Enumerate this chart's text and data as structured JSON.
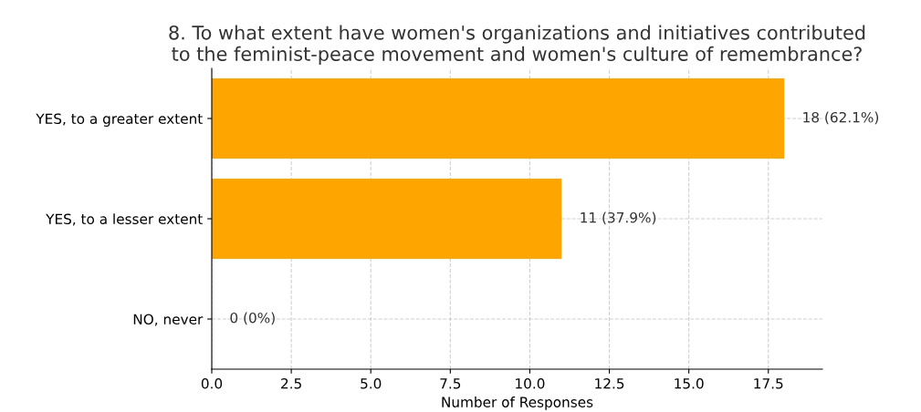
{
  "chart_data": {
    "type": "bar",
    "orientation": "horizontal",
    "title": "8. To what extent have women's organizations and initiatives contributed\nto the feminist-peace movement and women's culture of remembrance?",
    "xlabel": "Number of Responses",
    "categories": [
      "YES, to a greater extent",
      "YES, to a lesser extent",
      "NO, never"
    ],
    "values": [
      18,
      11,
      0
    ],
    "color": "#ffa500",
    "value_labels": [
      "18 (62.1%)",
      "11 (37.9%)",
      "0 (0%)"
    ],
    "xlim": [
      0,
      19.2
    ],
    "xticks": [
      {
        "value": 0,
        "label": "0.0"
      },
      2.5,
      {
        "value": 5,
        "label": "5.0"
      },
      7.5,
      {
        "value": 10,
        "label": "10.0"
      },
      12.5,
      {
        "value": 15,
        "label": "15.0"
      },
      17.5
    ],
    "grid": true,
    "line_style": "dashed"
  }
}
